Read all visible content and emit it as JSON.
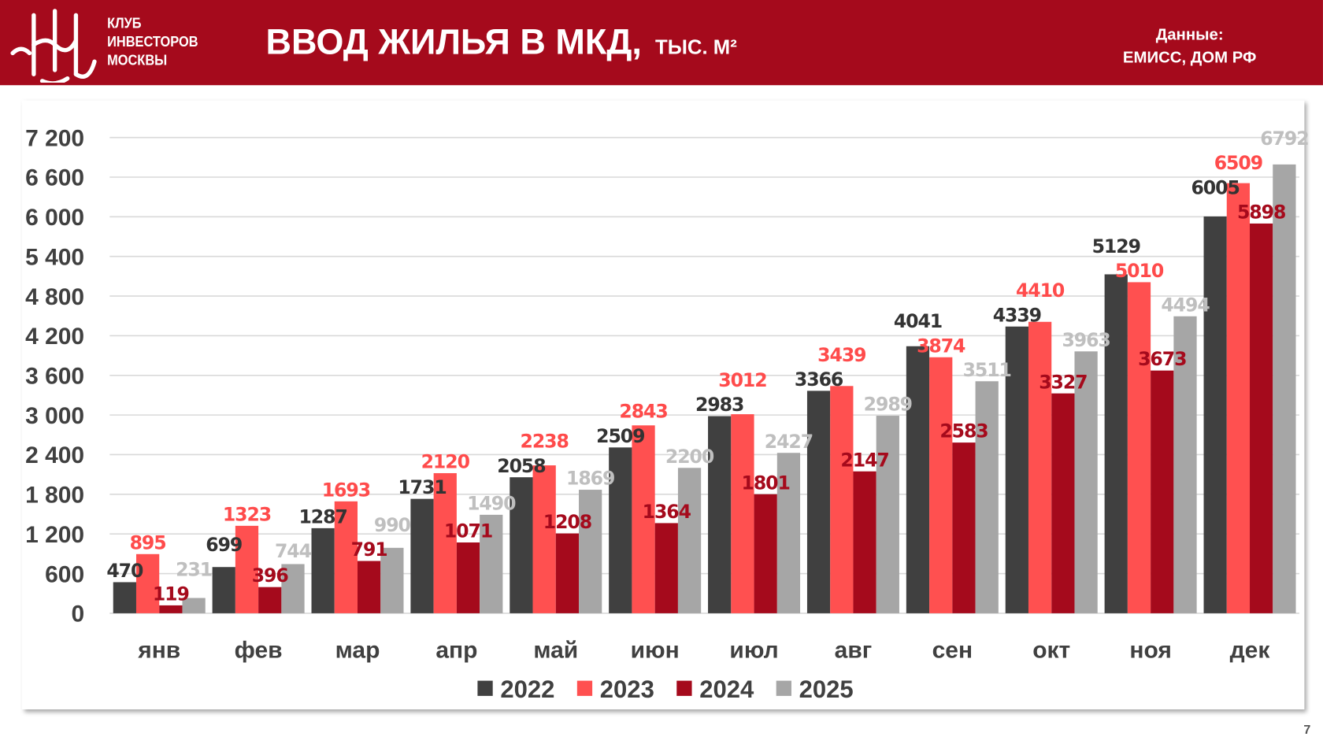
{
  "header": {
    "club_lines": [
      "КЛУБ",
      "ИНВЕСТОРОВ",
      "МОСКВЫ"
    ],
    "logo_text": "КИМ",
    "title": "ВВОД ЖИЛЬЯ В МКД,",
    "unit": "ТЫС. М²",
    "source_label": "Данные:",
    "source_value": "ЕМИСС, ДОМ РФ",
    "brand_color": "#a50a1c"
  },
  "page_number": "7",
  "chart_data": {
    "type": "bar",
    "title": "",
    "xlabel": "",
    "ylabel": "",
    "ylim": [
      0,
      7200
    ],
    "yticks": [
      0,
      600,
      1200,
      1800,
      2400,
      3000,
      3600,
      4200,
      4800,
      5400,
      6000,
      6600,
      7200
    ],
    "ytick_labels": [
      "0",
      "600",
      "1 200",
      "1 800",
      "2 400",
      "3 000",
      "3 600",
      "4 200",
      "4 800",
      "5 400",
      "6 000",
      "6 600",
      "7 200"
    ],
    "grid": true,
    "legend_position": "bottom",
    "categories": [
      "янв",
      "фев",
      "мар",
      "апр",
      "май",
      "июн",
      "июл",
      "авг",
      "сен",
      "окт",
      "ноя",
      "дек"
    ],
    "series": [
      {
        "name": "2022",
        "color": "#404040",
        "label_color": "#333333",
        "values": [
          470,
          699,
          1287,
          1731,
          2058,
          2509,
          2983,
          3366,
          4041,
          4339,
          5129,
          6005
        ]
      },
      {
        "name": "2023",
        "color": "#ff5050",
        "label_color": "#ff4b4b",
        "values": [
          895,
          1323,
          1693,
          2120,
          2238,
          2843,
          3012,
          3439,
          3874,
          4410,
          5010,
          6509
        ]
      },
      {
        "name": "2024",
        "color": "#a50a1c",
        "label_color": "#a50a1c",
        "values": [
          119,
          396,
          791,
          1071,
          1208,
          1364,
          1801,
          2147,
          2583,
          3327,
          3673,
          5898
        ]
      },
      {
        "name": "2025",
        "color": "#a6a6a6",
        "label_color": "#bfbfbf",
        "values": [
          231,
          744,
          990,
          1490,
          1869,
          2200,
          2427,
          2989,
          3511,
          3963,
          4494,
          6792
        ]
      }
    ]
  }
}
